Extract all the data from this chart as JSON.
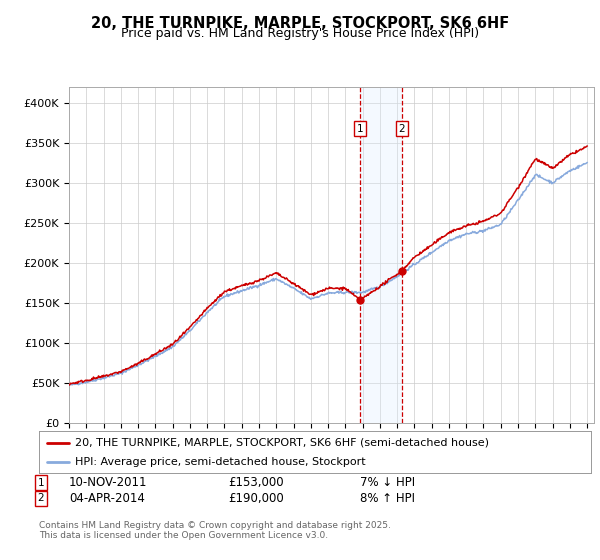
{
  "title": "20, THE TURNPIKE, MARPLE, STOCKPORT, SK6 6HF",
  "subtitle": "Price paid vs. HM Land Registry's House Price Index (HPI)",
  "ylim": [
    0,
    420000
  ],
  "yticks": [
    0,
    50000,
    100000,
    150000,
    200000,
    250000,
    300000,
    350000,
    400000
  ],
  "ytick_labels": [
    "£0",
    "£50K",
    "£100K",
    "£150K",
    "£200K",
    "£250K",
    "£300K",
    "£350K",
    "£400K"
  ],
  "xlim_left": 1995.0,
  "xlim_right": 2025.4,
  "sale1_date": 2011.86,
  "sale1_price": 153000,
  "sale2_date": 2014.27,
  "sale2_price": 190000,
  "line1_color": "#cc0000",
  "line2_color": "#88aadd",
  "vline_color": "#cc0000",
  "vband_color": "#ddeeff",
  "legend1_label": "20, THE TURNPIKE, MARPLE, STOCKPORT, SK6 6HF (semi-detached house)",
  "legend2_label": "HPI: Average price, semi-detached house, Stockport",
  "ann1_num": "1",
  "ann1_date": "10-NOV-2011",
  "ann1_price": "£153,000",
  "ann1_hpi": "7% ↓ HPI",
  "ann2_num": "2",
  "ann2_date": "04-APR-2014",
  "ann2_price": "£190,000",
  "ann2_hpi": "8% ↑ HPI",
  "footnote": "Contains HM Land Registry data © Crown copyright and database right 2025.\nThis data is licensed under the Open Government Licence v3.0.",
  "background_color": "#ffffff",
  "grid_color": "#cccccc"
}
